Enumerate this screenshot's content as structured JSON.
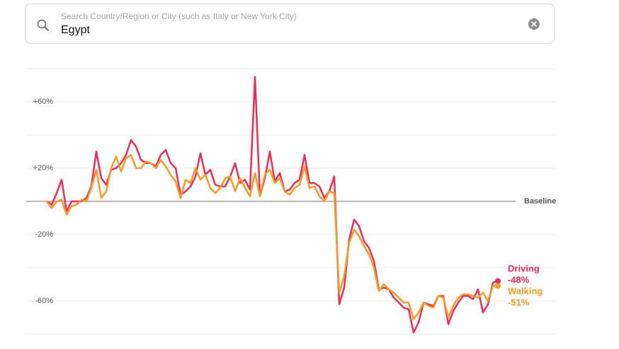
{
  "search": {
    "placeholder": "Search Country/Region or City (such as Italy or New York City)",
    "value": "Egypt"
  },
  "chart_data": {
    "type": "line",
    "ylim": [
      -84,
      80
    ],
    "yticks": [
      {
        "value": 60,
        "label": "+60%"
      },
      {
        "value": 20,
        "label": "+20%"
      },
      {
        "value": -20,
        "label": "-20%"
      },
      {
        "value": -60,
        "label": "-60%"
      }
    ],
    "minor_grid": [
      80,
      40,
      -40,
      -80
    ],
    "baseline": {
      "value": 0,
      "label": "Baseline"
    },
    "grid": true,
    "series": [
      {
        "name": "Driving",
        "color": "#ee2b57",
        "values": [
          0,
          -2,
          5,
          13,
          -6,
          0,
          0,
          0,
          2,
          9,
          30,
          14,
          10,
          19,
          20,
          23,
          28,
          37,
          33,
          25,
          23,
          23,
          21,
          28,
          31,
          23,
          20,
          4,
          6,
          9,
          15,
          29,
          16,
          19,
          10,
          9,
          9,
          15,
          23,
          11,
          13,
          7,
          75,
          3,
          14,
          30,
          12,
          17,
          6,
          7,
          11,
          13,
          28,
          11,
          11,
          9,
          2,
          6,
          15,
          -62,
          -52,
          -23,
          -11,
          -15,
          -24,
          -28,
          -36,
          -53,
          -52,
          -53,
          -58,
          -61,
          -64,
          -65,
          -79,
          -73,
          -61,
          -62,
          -63,
          -57,
          -57,
          -74,
          -66,
          -61,
          -57,
          -57,
          -59,
          -53,
          -67,
          -62,
          -49,
          -48
        ],
        "value_labels": [
          null,
          null,
          null,
          null,
          null,
          null,
          null,
          null,
          null,
          null,
          null,
          null,
          null,
          null,
          null,
          null,
          null,
          null,
          null,
          null,
          null,
          null,
          null,
          null,
          null,
          null,
          null,
          null,
          null,
          null,
          null,
          null,
          null,
          null,
          null,
          null,
          null,
          null,
          null,
          null,
          null,
          null,
          null,
          null,
          null,
          null,
          null,
          null,
          null,
          null,
          null,
          null,
          null,
          null,
          null,
          null,
          null,
          null,
          null,
          null,
          null,
          null,
          null,
          null,
          null,
          null,
          null,
          null,
          null,
          null,
          null,
          null,
          null,
          null,
          null,
          null,
          null,
          null,
          null,
          null,
          null,
          null,
          null,
          null,
          null,
          null,
          null,
          null,
          null,
          null,
          null,
          "-48%"
        ]
      },
      {
        "name": "Walking",
        "color": "#f59b22",
        "values": [
          0,
          -4,
          0,
          1,
          -8,
          -3,
          -2,
          1,
          0,
          8,
          19,
          2,
          6,
          20,
          27,
          18,
          26,
          28,
          20,
          20,
          24,
          23,
          20,
          25,
          21,
          16,
          12,
          2,
          13,
          11,
          20,
          13,
          16,
          8,
          5,
          8,
          14,
          15,
          6,
          14,
          8,
          3,
          17,
          3,
          16,
          19,
          11,
          14,
          6,
          4,
          8,
          10,
          21,
          8,
          9,
          3,
          0,
          6,
          5,
          -55,
          -45,
          -25,
          -17,
          -21,
          -27,
          -32,
          -40,
          -54,
          -50,
          -53,
          -55,
          -58,
          -61,
          -61,
          -71,
          -67,
          -61,
          -63,
          -64,
          -57,
          -58,
          -70,
          -63,
          -58,
          -56,
          -56,
          -57,
          -58,
          -55,
          -60,
          -51,
          -51
        ],
        "value_labels": [
          null,
          null,
          null,
          null,
          null,
          null,
          null,
          null,
          null,
          null,
          null,
          null,
          null,
          null,
          null,
          null,
          null,
          null,
          null,
          null,
          null,
          null,
          null,
          null,
          null,
          null,
          null,
          null,
          null,
          null,
          null,
          null,
          null,
          null,
          null,
          null,
          null,
          null,
          null,
          null,
          null,
          null,
          null,
          null,
          null,
          null,
          null,
          null,
          null,
          null,
          null,
          null,
          null,
          null,
          null,
          null,
          null,
          null,
          null,
          null,
          null,
          null,
          null,
          null,
          null,
          null,
          null,
          null,
          null,
          null,
          null,
          null,
          null,
          null,
          null,
          null,
          null,
          null,
          null,
          null,
          null,
          null,
          null,
          null,
          null,
          null,
          null,
          null,
          null,
          null,
          null,
          "-51%"
        ]
      }
    ]
  }
}
